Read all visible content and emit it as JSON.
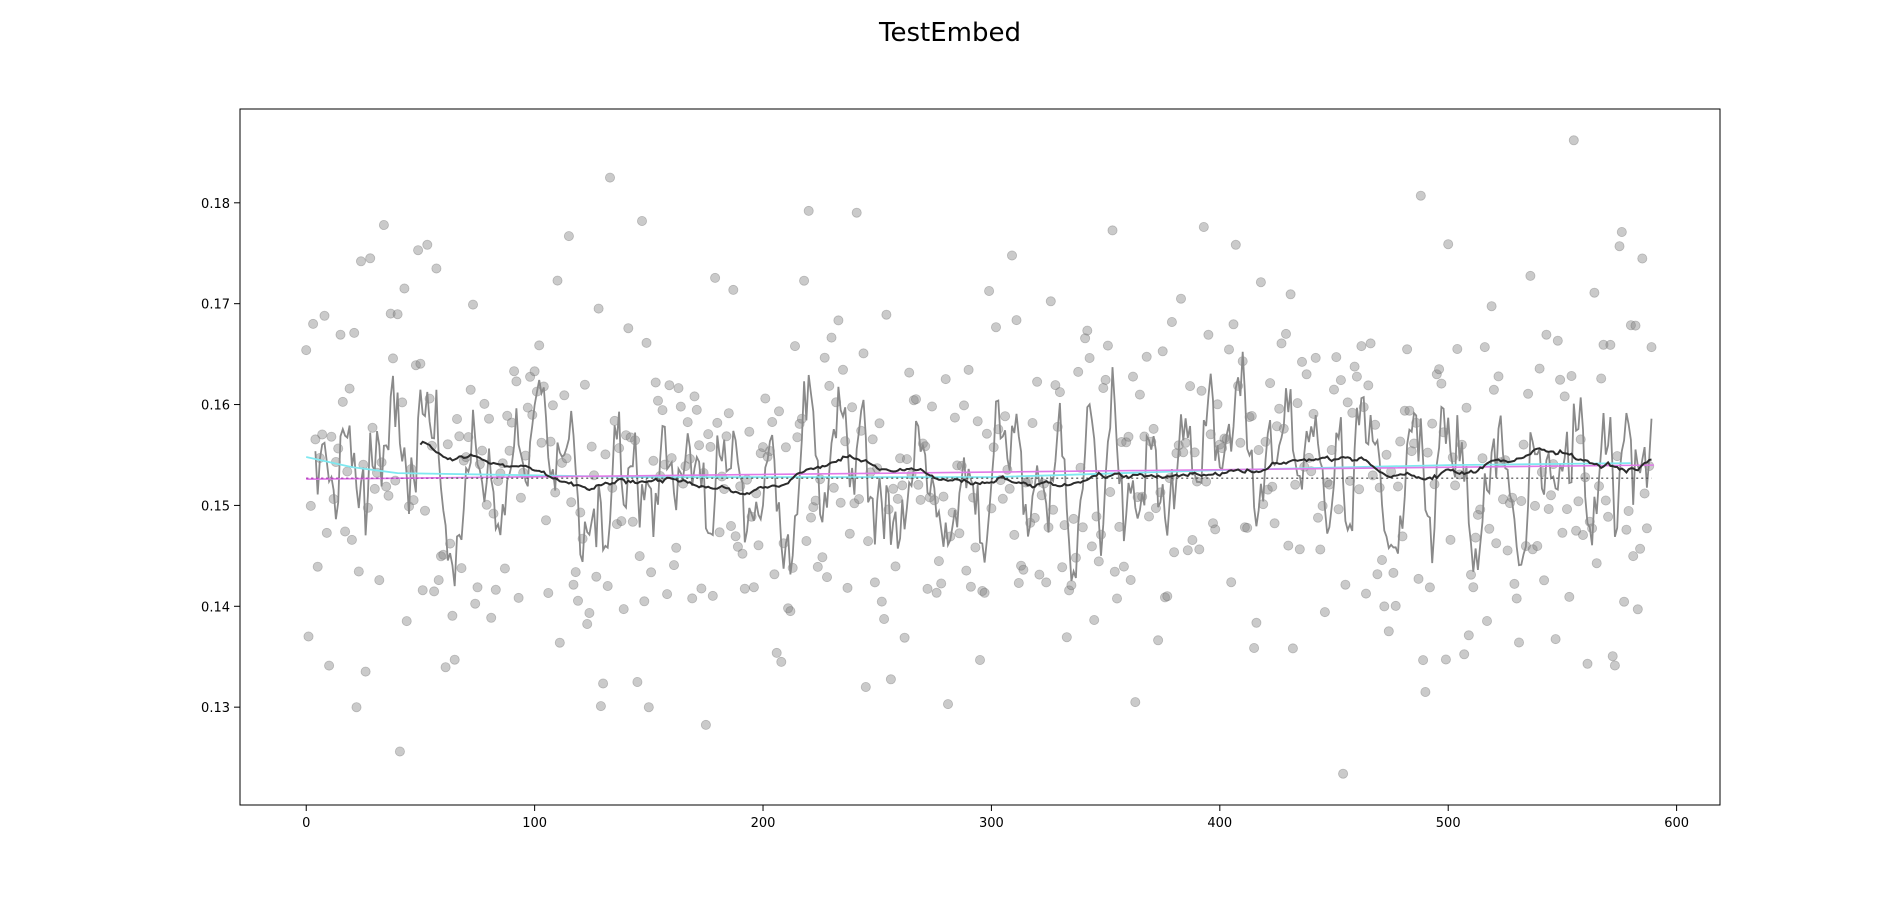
{
  "chart_data": {
    "type": "scatter",
    "title": "TestEmbed",
    "xlabel": "",
    "ylabel": "",
    "xlim": [
      -29,
      619
    ],
    "ylim": [
      0.1203,
      0.1893
    ],
    "x_ticks": [
      0,
      100,
      200,
      300,
      400,
      500,
      600
    ],
    "y_ticks": [
      0.13,
      0.14,
      0.15,
      0.16,
      0.17,
      0.18
    ],
    "x_tick_labels": [
      "0",
      "100",
      "200",
      "300",
      "400",
      "500",
      "600"
    ],
    "y_tick_labels": [
      "0.13",
      "0.14",
      "0.15",
      "0.16",
      "0.17",
      "0.18"
    ],
    "grid": false,
    "n_points": 590,
    "baseline": 0.1527,
    "colors": {
      "scatter": "#808080",
      "short_smooth": "#8a8a8a",
      "long_smooth": "#2b2b2b",
      "cyan_trend": "#7fe8f0",
      "magenta_trend": "#e07ae8",
      "baseline": "#444444",
      "magenta_dotted": "#c040c8"
    },
    "series": [
      {
        "type": "scatter",
        "sample_points": [
          [
            1,
            0.137
          ],
          [
            3,
            0.168
          ],
          [
            6,
            0.1547
          ],
          [
            8,
            0.1688
          ],
          [
            22,
            0.13
          ],
          [
            24,
            0.1742
          ],
          [
            28,
            0.1745
          ],
          [
            34,
            0.1778
          ],
          [
            41,
            0.1256
          ],
          [
            43,
            0.1715
          ],
          [
            49,
            0.1753
          ],
          [
            133,
            0.1825
          ],
          [
            147,
            0.1782
          ],
          [
            150,
            0.13
          ],
          [
            220,
            0.1792
          ],
          [
            281,
            0.1303
          ],
          [
            363,
            0.1305
          ],
          [
            393,
            0.1776
          ],
          [
            454,
            0.1234
          ],
          [
            488,
            0.1807
          ],
          [
            490,
            0.1315
          ],
          [
            500,
            0.1759
          ],
          [
            555,
            0.1862
          ],
          [
            561,
            0.1343
          ],
          [
            583,
            0.1397
          ],
          [
            589,
            0.1657
          ]
        ]
      },
      {
        "type": "line",
        "style": "short-window smooth",
        "y_range": [
          0.139,
          0.1678
        ],
        "mean": 0.1527
      },
      {
        "type": "line",
        "style": "long-window smooth",
        "x_start": 50,
        "points": [
          [
            50,
            0.1557
          ],
          [
            80,
            0.1545
          ],
          [
            110,
            0.1522
          ],
          [
            160,
            0.1525
          ],
          [
            190,
            0.1513
          ],
          [
            240,
            0.1545
          ],
          [
            300,
            0.1522
          ],
          [
            330,
            0.1522
          ],
          [
            360,
            0.1531
          ],
          [
            400,
            0.1525
          ],
          [
            450,
            0.1548
          ],
          [
            490,
            0.1525
          ],
          [
            540,
            0.1555
          ],
          [
            580,
            0.1532
          ],
          [
            590,
            0.1538
          ]
        ]
      },
      {
        "type": "line",
        "style": "trend",
        "color": "cyan",
        "points": [
          [
            0,
            0.1548
          ],
          [
            20,
            0.1538
          ],
          [
            40,
            0.1532
          ],
          [
            150,
            0.1528
          ],
          [
            300,
            0.1528
          ],
          [
            400,
            0.1535
          ],
          [
            500,
            0.154
          ],
          [
            580,
            0.1542
          ]
        ]
      },
      {
        "type": "line",
        "style": "trend",
        "color": "magenta",
        "points": [
          [
            0,
            0.1526
          ],
          [
            300,
            0.1533
          ],
          [
            590,
            0.154
          ]
        ]
      },
      {
        "type": "line",
        "style": "baseline-dotted",
        "y": 0.1527
      }
    ]
  }
}
